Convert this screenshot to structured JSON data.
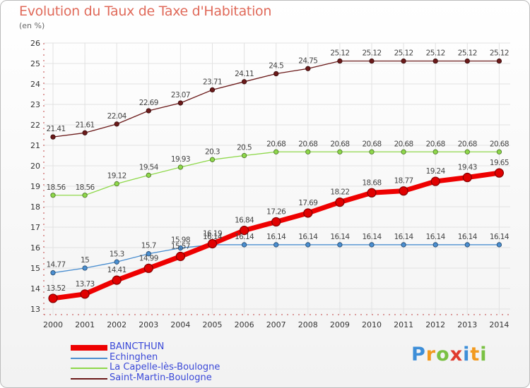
{
  "title": "Evolution du Taux de Taxe d'Habitation",
  "unit_label": "(en %)",
  "logo": {
    "text": "Proxiti",
    "letter_colors": [
      "#3d8ed8",
      "#f29a1f",
      "#7ac143",
      "#e03b2e",
      "#3d8ed8",
      "#f29a1f",
      "#7ac143"
    ]
  },
  "chart_data": {
    "type": "line",
    "title": "Evolution du Taux de Taxe d'Habitation",
    "ylabel": "(en %)",
    "xlabel": "",
    "ylim": [
      13,
      26
    ],
    "yticks": [
      13,
      14,
      15,
      16,
      17,
      18,
      19,
      20,
      21,
      22,
      23,
      24,
      25,
      26
    ],
    "x": [
      "2000",
      "2001",
      "2002",
      "2003",
      "2004",
      "2005",
      "2006",
      "2007",
      "2008",
      "2009",
      "2010",
      "2011",
      "2012",
      "2013",
      "2014"
    ],
    "grid": true,
    "legend": "bottom-left",
    "series": [
      {
        "name": "BAINCTHUN",
        "color": "#ee0000",
        "emphasis": true,
        "values": [
          13.52,
          13.73,
          14.41,
          14.99,
          15.57,
          16.19,
          16.84,
          17.26,
          17.69,
          18.22,
          18.68,
          18.77,
          19.24,
          19.43,
          19.65
        ],
        "labels": [
          "13.52",
          "13.73",
          "14.41",
          "14.99",
          "15.57",
          "16.19",
          "16.84",
          "17.26",
          "17.69",
          "18.22",
          "18.68",
          "18.77",
          "19.24",
          "19.43",
          "19.65"
        ]
      },
      {
        "name": "Echinghen",
        "color": "#4a8ed0",
        "emphasis": false,
        "values": [
          14.77,
          15.0,
          15.3,
          15.7,
          15.98,
          16.14,
          16.14,
          16.14,
          16.14,
          16.14,
          16.14,
          16.14,
          16.14,
          16.14,
          16.14
        ],
        "labels": [
          "14.77",
          "15",
          "15.3",
          "15.7",
          "15.98",
          "16.14",
          "16.14",
          "16.14",
          "16.14",
          "16.14",
          "16.14",
          "16.14",
          "16.14",
          "16.14",
          "16.14"
        ]
      },
      {
        "name": "La Capelle-lès-Boulogne",
        "color": "#8ed84a",
        "emphasis": false,
        "values": [
          18.56,
          18.56,
          19.12,
          19.54,
          19.93,
          20.3,
          20.5,
          20.68,
          20.68,
          20.68,
          20.68,
          20.68,
          20.68,
          20.68,
          20.68
        ],
        "labels": [
          "18.56",
          "18.56",
          "19.12",
          "19.54",
          "19.93",
          "20.3",
          "20.5",
          "20.68",
          "20.68",
          "20.68",
          "20.68",
          "20.68",
          "20.68",
          "20.68",
          "20.68"
        ]
      },
      {
        "name": "Saint-Martin-Boulogne",
        "color": "#6b1a1a",
        "emphasis": false,
        "values": [
          21.41,
          21.61,
          22.04,
          22.69,
          23.07,
          23.71,
          24.11,
          24.5,
          24.75,
          25.12,
          25.12,
          25.12,
          25.12,
          25.12,
          25.12
        ],
        "labels": [
          "21.41",
          "21.61",
          "22.04",
          "22.69",
          "23.07",
          "23.71",
          "24.11",
          "24.5",
          "24.75",
          "25.12",
          "25.12",
          "25.12",
          "25.12",
          "25.12",
          "25.12"
        ]
      }
    ]
  }
}
